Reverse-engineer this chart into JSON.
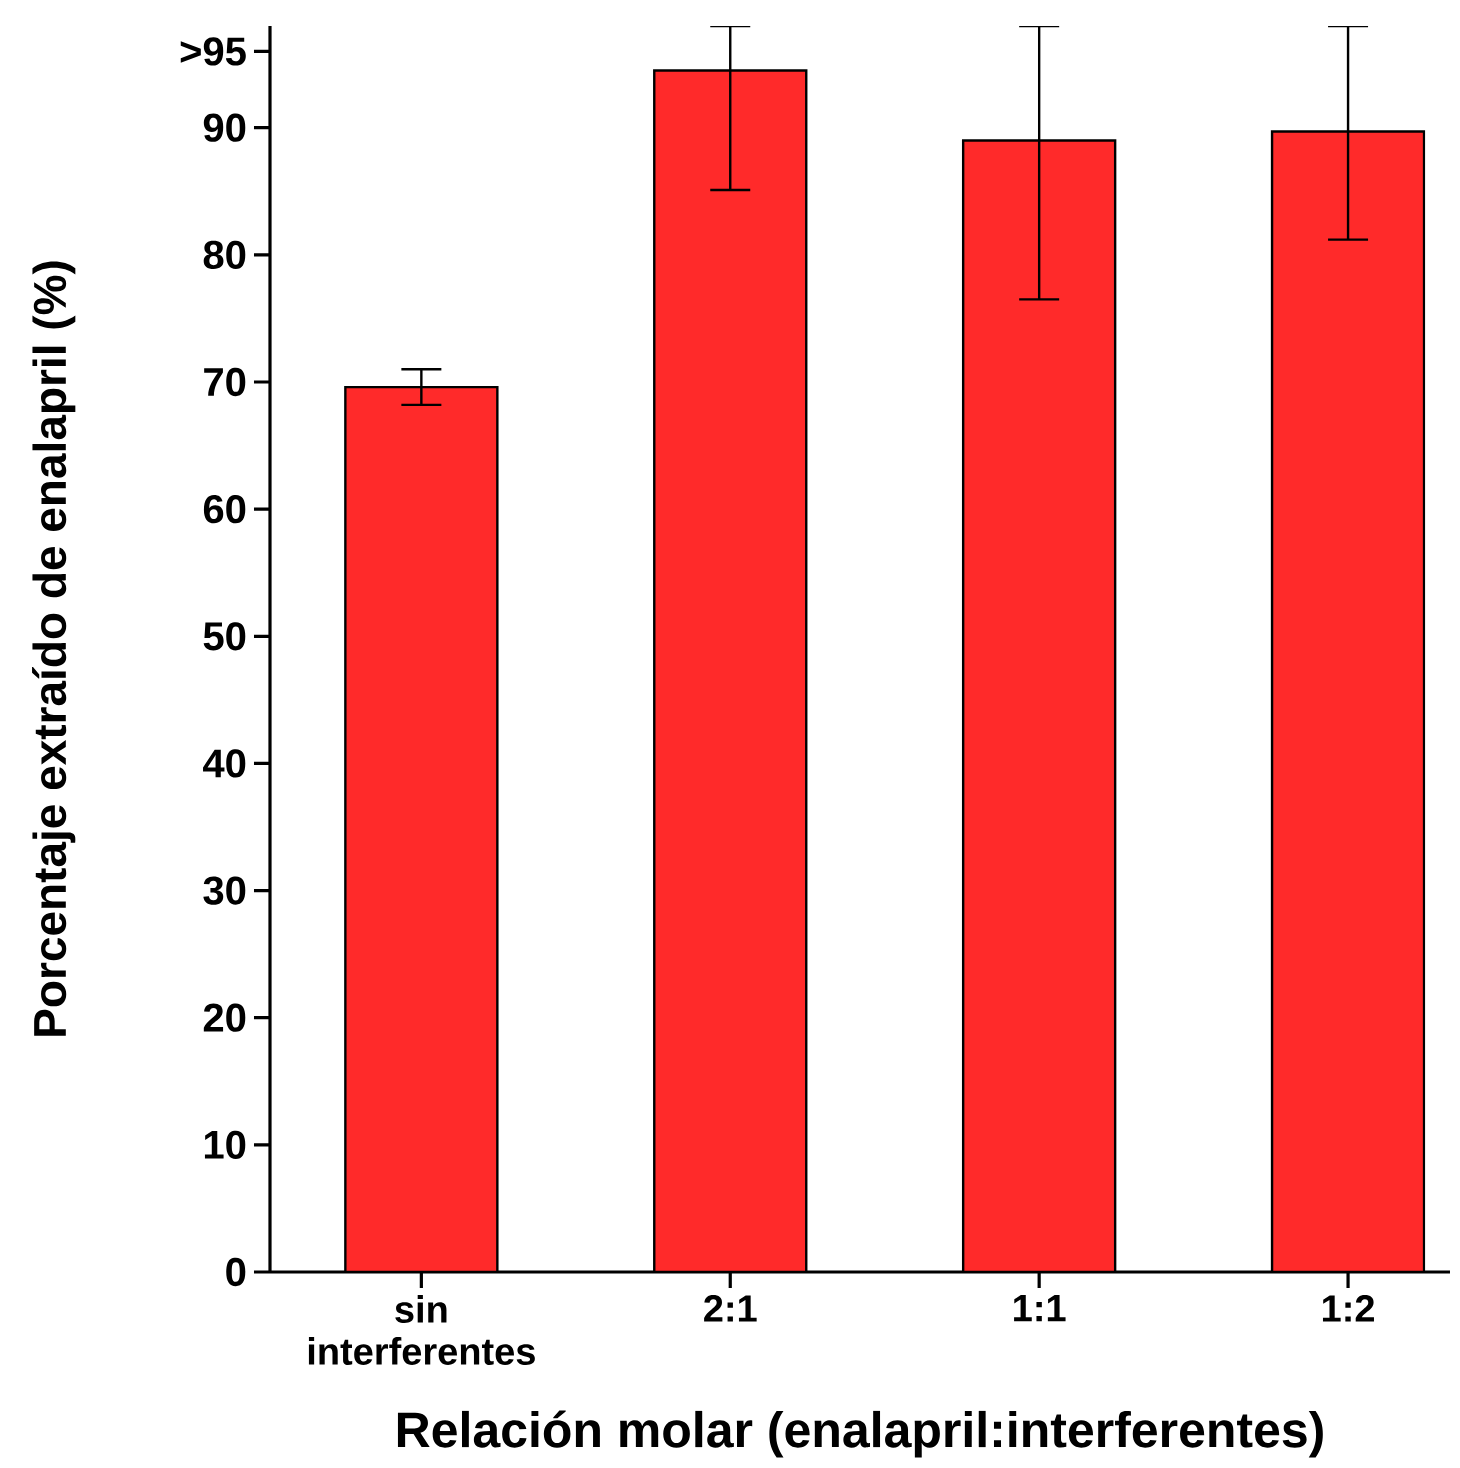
{
  "chart_data": {
    "type": "bar",
    "xlabel": "Relación molar (enalapril:interferentes)",
    "ylabel": "Porcentaje extraído de enalapril (%)",
    "categories": [
      "sin interferentes",
      "2:1",
      "1:1",
      "1:2"
    ],
    "values": [
      69.6,
      94.5,
      89.0,
      89.7
    ],
    "errors": [
      1.4,
      [
        85.1,
        98
      ],
      [
        76.5,
        98
      ],
      [
        81.2,
        98
      ]
    ],
    "color": "#ff2a2a",
    "ylim": [
      0,
      98
    ],
    "yticks": [
      0,
      10,
      20,
      30,
      40,
      50,
      60,
      70,
      80,
      90,
      {
        "value": 96,
        "label": ">95"
      }
    ]
  }
}
